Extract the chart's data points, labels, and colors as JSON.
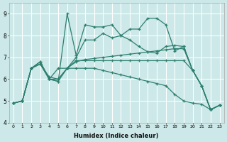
{
  "xlabel": "Humidex (Indice chaleur)",
  "bg_color": "#cce8e8",
  "grid_color": "#ffffff",
  "line_color": "#2d7f6f",
  "ylim": [
    4.0,
    9.5
  ],
  "xlim": [
    -0.5,
    23.5
  ],
  "yticks": [
    4,
    5,
    6,
    7,
    8,
    9
  ],
  "xticks": [
    0,
    1,
    2,
    3,
    4,
    5,
    6,
    7,
    8,
    9,
    10,
    11,
    12,
    13,
    14,
    15,
    16,
    17,
    18,
    19,
    20,
    21,
    22,
    23
  ],
  "series": [
    [
      4.9,
      5.0,
      6.5,
      6.8,
      6.0,
      5.9,
      9.0,
      7.1,
      8.5,
      8.4,
      8.4,
      8.5,
      8.0,
      8.3,
      8.3,
      8.8,
      8.8,
      8.5,
      7.3,
      7.5,
      6.4,
      5.7,
      4.6,
      4.8
    ],
    [
      4.9,
      5.0,
      6.5,
      6.8,
      6.0,
      5.9,
      6.5,
      7.0,
      7.8,
      7.8,
      8.1,
      7.9,
      8.0,
      7.8,
      7.5,
      7.25,
      7.2,
      7.5,
      7.55,
      7.5,
      6.4,
      5.7,
      4.6,
      4.8
    ],
    [
      4.9,
      5.0,
      6.5,
      6.7,
      6.0,
      6.5,
      6.5,
      6.85,
      6.85,
      6.85,
      6.85,
      6.85,
      6.85,
      6.85,
      6.85,
      6.85,
      6.85,
      6.85,
      6.85,
      6.85,
      6.4,
      5.7,
      4.6,
      4.8
    ],
    [
      4.9,
      5.0,
      6.5,
      6.7,
      6.1,
      6.0,
      6.5,
      6.8,
      6.9,
      6.95,
      7.0,
      7.05,
      7.1,
      7.15,
      7.2,
      7.25,
      7.3,
      7.35,
      7.4,
      7.4,
      6.4,
      5.7,
      4.6,
      4.8
    ],
    [
      4.9,
      5.0,
      6.5,
      6.7,
      6.0,
      6.0,
      6.5,
      6.5,
      6.5,
      6.5,
      6.4,
      6.3,
      6.2,
      6.1,
      6.0,
      5.9,
      5.8,
      5.7,
      5.3,
      5.0,
      4.9,
      4.85,
      4.6,
      4.8
    ]
  ]
}
